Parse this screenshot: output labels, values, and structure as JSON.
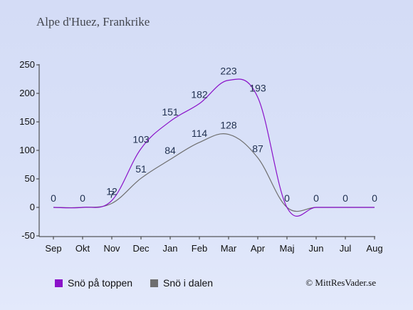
{
  "colors": {
    "top": "#8a12c9",
    "valley": "#6f6f6f"
  },
  "chart_data": {
    "type": "line",
    "title": "Alpe d'Huez, Frankrike",
    "categories": [
      "Sep",
      "Okt",
      "Nov",
      "Dec",
      "Jan",
      "Feb",
      "Mar",
      "Apr",
      "Maj",
      "Jun",
      "Jul",
      "Aug"
    ],
    "ylim": [
      -50,
      250
    ],
    "yticks": [
      -50,
      0,
      50,
      100,
      150,
      200,
      250
    ],
    "grid": false,
    "legend_position": "bottom-left",
    "series": [
      {
        "name": "Snö på toppen",
        "values": [
          0,
          0,
          12,
          103,
          151,
          182,
          223,
          193,
          0,
          0,
          0,
          0
        ],
        "labels": [
          "0",
          "0",
          "12",
          "103",
          "151",
          "182",
          "223",
          "193",
          "0",
          "0",
          "0",
          "0"
        ]
      },
      {
        "name": "Snö i dalen",
        "values": [
          0,
          0,
          7,
          51,
          84,
          114,
          128,
          87,
          0,
          0,
          0,
          0
        ],
        "labels": [
          "",
          "",
          "7",
          "51",
          "84",
          "114",
          "128",
          "87",
          "",
          "",
          "",
          ""
        ]
      }
    ]
  },
  "copyright": "© MittResVader.se"
}
